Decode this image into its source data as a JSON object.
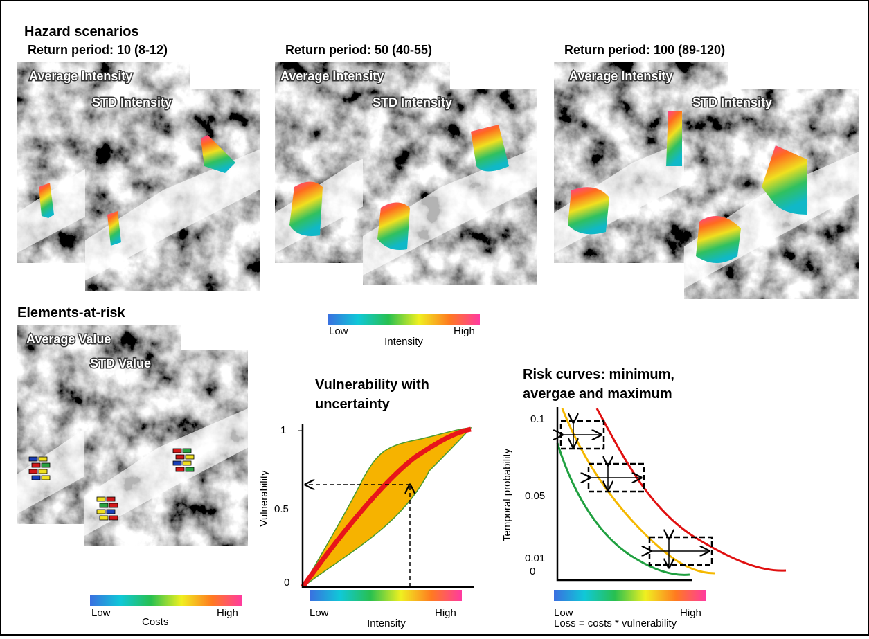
{
  "hazard": {
    "title": "Hazard scenarios",
    "scenarios": [
      {
        "return_period": "Return period: 10 (8-12)",
        "average_label": "Average Intensity",
        "std_label": "STD Intensity"
      },
      {
        "return_period": "Return period: 50 (40-55)",
        "average_label": "Average Intensity",
        "std_label": "STD Intensity"
      },
      {
        "return_period": "Return period: 100 (89-120)",
        "average_label": "Average Intensity",
        "std_label": "STD Intensity"
      }
    ]
  },
  "intensity_legend": {
    "low": "Low",
    "high": "High",
    "label": "Intensity"
  },
  "elements": {
    "title": "Elements-at-risk",
    "average_label": "Average Value",
    "std_label": "STD Value",
    "legend": {
      "low": "Low",
      "label": "Costs",
      "high": "High"
    }
  },
  "vulnerability": {
    "title": [
      "Vulnerability with",
      "uncertainty"
    ],
    "y_label": "Vulnerability",
    "y_ticks": [
      "1",
      "0.5",
      "0"
    ],
    "x_low": "Low",
    "x_label": "Intensity",
    "x_high": "High"
  },
  "risk": {
    "title": [
      "Risk curves: minimum,",
      "avergae and maximum"
    ],
    "y_label": "Temporal probability",
    "y_ticks": [
      "0.1",
      "0.05",
      "0.01",
      "0"
    ],
    "x_low": "Low",
    "x_high": "High",
    "x_label": "Loss = costs * vulnerability"
  }
}
